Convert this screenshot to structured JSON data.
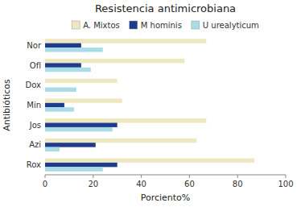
{
  "chart_data": {
    "type": "bar",
    "orientation": "horizontal",
    "title": "Resistencia antimicrobiana",
    "xlabel": "Porciento%",
    "ylabel": "Antibióticos",
    "categories": [
      "Rox",
      "Azi",
      "Jos",
      "Min",
      "Dox",
      "Ofl",
      "Nor"
    ],
    "series": [
      {
        "name": "A. Mixtos",
        "color": "#EDE8C0",
        "values": [
          87,
          63,
          67,
          32,
          30,
          58,
          67
        ]
      },
      {
        "name": "M hominis",
        "color": "#1F3B8C",
        "values": [
          30,
          21,
          30,
          8,
          0,
          15,
          15
        ]
      },
      {
        "name": "U urealyticum",
        "color": "#AADCE8",
        "values": [
          24,
          6,
          28,
          12,
          13,
          19,
          24
        ]
      }
    ],
    "xlim": [
      0,
      100
    ],
    "xticks": [
      0,
      20,
      40,
      60,
      80,
      100
    ],
    "grid": false,
    "legend": "top"
  }
}
